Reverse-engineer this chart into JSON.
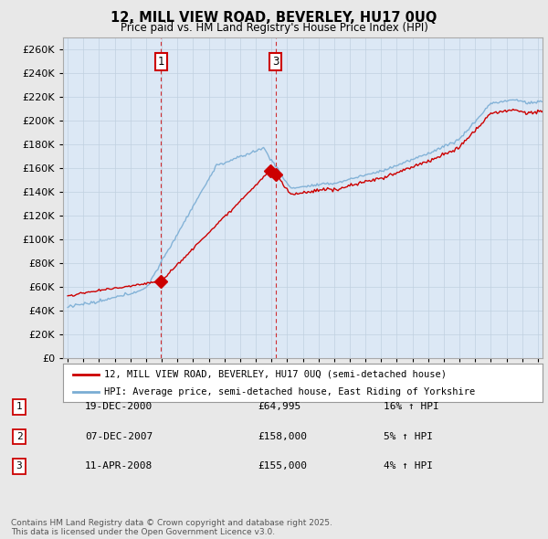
{
  "title_line1": "12, MILL VIEW ROAD, BEVERLEY, HU17 0UQ",
  "title_line2": "Price paid vs. HM Land Registry's House Price Index (HPI)",
  "ylim": [
    0,
    270000
  ],
  "yticks": [
    0,
    20000,
    40000,
    60000,
    80000,
    100000,
    120000,
    140000,
    160000,
    180000,
    200000,
    220000,
    240000,
    260000
  ],
  "xlim_start": 1994.7,
  "xlim_end": 2025.3,
  "legend_line1": "12, MILL VIEW ROAD, BEVERLEY, HU17 0UQ (semi-detached house)",
  "legend_line2": "HPI: Average price, semi-detached house, East Riding of Yorkshire",
  "sale1_label": "1",
  "sale1_date": "19-DEC-2000",
  "sale1_price": "£64,995",
  "sale1_hpi": "16% ↑ HPI",
  "sale1_year": 2000.96,
  "sale1_value": 64995,
  "sale2_label": "2",
  "sale2_date": "07-DEC-2007",
  "sale2_price": "£158,000",
  "sale2_hpi": "5% ↑ HPI",
  "sale2_year": 2007.93,
  "sale2_value": 158000,
  "sale3_label": "3",
  "sale3_date": "11-APR-2008",
  "sale3_price": "£155,000",
  "sale3_hpi": "4% ↑ HPI",
  "sale3_year": 2008.27,
  "sale3_value": 155000,
  "color_sold": "#cc0000",
  "color_hpi": "#7aadd4",
  "background_color": "#e8e8e8",
  "plot_background": "#dce8f5",
  "grid_color": "#c0d0e0",
  "footer": "Contains HM Land Registry data © Crown copyright and database right 2025.\nThis data is licensed under the Open Government Licence v3.0."
}
